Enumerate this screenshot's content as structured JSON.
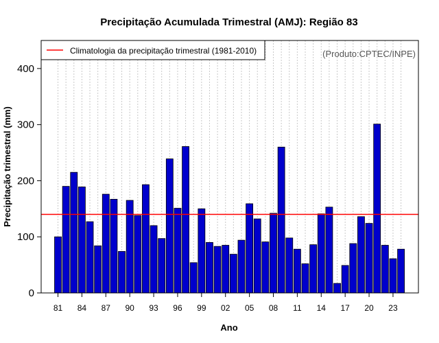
{
  "chart_data": {
    "type": "bar",
    "title": "Precipitação Acumulada Trimestral (AMJ): Região 83",
    "xlabel": "Ano",
    "ylabel": "Precipitação trimestral (mm)",
    "credit": "(Produto:CPTEC/INPE)",
    "ylim": [
      0,
      450
    ],
    "yticks": [
      0,
      100,
      200,
      300,
      400
    ],
    "grid": "vertical dotted",
    "legend": {
      "placement": "top-left",
      "entries": [
        {
          "label": "Climatologia da precipitação trimestral (1981-2010)",
          "color": "#ff0000"
        }
      ]
    },
    "categories": [
      "1981",
      "1982",
      "1983",
      "1984",
      "1985",
      "1986",
      "1987",
      "1988",
      "1989",
      "1990",
      "1991",
      "1992",
      "1993",
      "1994",
      "1995",
      "1996",
      "1997",
      "1998",
      "1999",
      "2000",
      "2001",
      "2002",
      "2003",
      "2004",
      "2005",
      "2006",
      "2007",
      "2008",
      "2009",
      "2010",
      "2011",
      "2012",
      "2013",
      "2014",
      "2015",
      "2016",
      "2017",
      "2018",
      "2019",
      "2020",
      "2021",
      "2022",
      "2023",
      "2024"
    ],
    "xtick_labels": [
      {
        "year": "1981",
        "label": "81"
      },
      {
        "year": "1984",
        "label": "84"
      },
      {
        "year": "1987",
        "label": "87"
      },
      {
        "year": "1990",
        "label": "90"
      },
      {
        "year": "1993",
        "label": "93"
      },
      {
        "year": "1996",
        "label": "96"
      },
      {
        "year": "1999",
        "label": "99"
      },
      {
        "year": "2002",
        "label": "02"
      },
      {
        "year": "2005",
        "label": "05"
      },
      {
        "year": "2008",
        "label": "08"
      },
      {
        "year": "2011",
        "label": "11"
      },
      {
        "year": "2014",
        "label": "14"
      },
      {
        "year": "2017",
        "label": "17"
      },
      {
        "year": "2020",
        "label": "20"
      },
      {
        "year": "2023",
        "label": "23"
      }
    ],
    "series": [
      {
        "name": "Precipitação trimestral",
        "color": "#0000cc",
        "values": [
          100,
          190,
          215,
          189,
          127,
          84,
          176,
          167,
          74,
          165,
          138,
          193,
          120,
          97,
          239,
          151,
          261,
          54,
          150,
          90,
          83,
          85,
          69,
          94,
          159,
          132,
          91,
          142,
          260,
          98,
          78,
          52,
          86,
          141,
          153,
          17,
          49,
          88,
          136,
          124,
          301,
          85,
          61,
          78
        ]
      }
    ],
    "climatology": 140
  }
}
